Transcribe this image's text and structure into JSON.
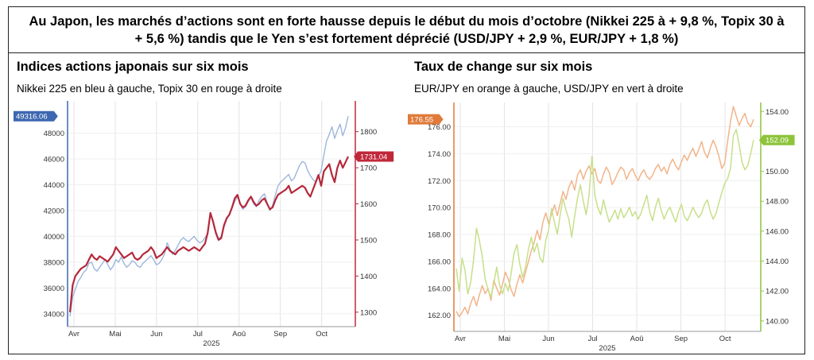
{
  "headline": "Au Japon, les marchés d’actions sont en forte hausse depuis le début du mois d’octobre (Nikkei 225 à + 9,8 %, Topix 30 à + 5,6 %) tandis que le Yen s’est fortement déprécié (USD/JPY + 2,9 %, EUR/JPY + 1,8 %)",
  "colors": {
    "nikkei": "#9db6dd",
    "topix": "#b5283b",
    "eurjpy": "#f2b48a",
    "usdjpy": "#c6e08a",
    "left_axis_l": "#3d67b0",
    "right_axis_l": "#c0283a",
    "left_axis_r": "#e07a3a",
    "right_axis_r": "#8dc43a"
  },
  "chart_data": [
    {
      "type": "line",
      "title": "Indices actions japonais sur six mois",
      "subtitle": "Nikkei 225 en bleu à gauche, Topix 30 en rouge à droite",
      "x_ticks": [
        "Avr",
        "Mai",
        "Jun",
        "Jul",
        "Aoû",
        "Sep",
        "Oct"
      ],
      "x_year": "2025",
      "y_left_ticks": [
        "34000",
        "36000",
        "38000",
        "40000",
        "42000",
        "44000",
        "46000",
        "48000"
      ],
      "y_right_ticks": [
        "1300",
        "1400",
        "1500",
        "1600",
        "1700",
        "1800"
      ],
      "ylim_left": [
        33000,
        50500
      ],
      "ylim_right": [
        1260,
        1885
      ],
      "last_left_label": "49316.06",
      "last_right_label": "1731.04",
      "series": [
        {
          "axis": "left",
          "colorKey": "nikkei",
          "values": [
            33800,
            35300,
            35900,
            36500,
            36800,
            37200,
            37400,
            37900,
            38000,
            37500,
            37300,
            37600,
            37900,
            38200,
            37800,
            37400,
            37700,
            38200,
            38000,
            38400,
            37900,
            37600,
            37800,
            38100,
            38000,
            37700,
            37600,
            37900,
            38100,
            38300,
            38500,
            38200,
            37800,
            37900,
            38200,
            38600,
            39500,
            39000,
            38600,
            38900,
            39300,
            39700,
            39900,
            39700,
            39600,
            39800,
            40000,
            39700,
            39500,
            39600,
            39900,
            40200,
            41800,
            41200,
            40400,
            39800,
            40000,
            40700,
            41300,
            41700,
            42200,
            42700,
            43100,
            42500,
            42100,
            42300,
            42700,
            43000,
            42500,
            42300,
            42800,
            43100,
            43300,
            42600,
            42000,
            42400,
            43200,
            43900,
            44200,
            44400,
            44600,
            44800,
            44300,
            44500,
            45000,
            45500,
            45800,
            45700,
            45100,
            44700,
            44400,
            44200,
            44600,
            45100,
            46300,
            47400,
            47900,
            48500,
            47600,
            48200,
            48700,
            47800,
            48400,
            49316
          ]
        },
        {
          "axis": "right",
          "colorKey": "topix",
          "values": [
            1300,
            1375,
            1400,
            1410,
            1420,
            1425,
            1430,
            1445,
            1460,
            1450,
            1445,
            1455,
            1450,
            1445,
            1440,
            1450,
            1460,
            1480,
            1470,
            1460,
            1450,
            1455,
            1460,
            1465,
            1450,
            1445,
            1450,
            1460,
            1465,
            1470,
            1480,
            1470,
            1450,
            1455,
            1460,
            1470,
            1480,
            1470,
            1465,
            1460,
            1470,
            1475,
            1480,
            1475,
            1470,
            1475,
            1480,
            1475,
            1470,
            1480,
            1490,
            1520,
            1575,
            1550,
            1520,
            1500,
            1505,
            1540,
            1560,
            1570,
            1590,
            1615,
            1625,
            1600,
            1590,
            1595,
            1610,
            1620,
            1605,
            1595,
            1600,
            1610,
            1615,
            1600,
            1585,
            1590,
            1610,
            1625,
            1630,
            1635,
            1640,
            1650,
            1630,
            1635,
            1640,
            1645,
            1650,
            1645,
            1630,
            1620,
            1640,
            1660,
            1680,
            1650,
            1690,
            1700,
            1710,
            1680,
            1660,
            1700,
            1720,
            1700,
            1715,
            1731
          ]
        }
      ]
    },
    {
      "type": "line",
      "title": "Taux de change sur six mois",
      "subtitle": "EUR/JPY en orange à gauche, USD/JPY en vert à droite",
      "x_ticks": [
        "Avr",
        "Mai",
        "Jun",
        "Jul",
        "Aoû",
        "Sep",
        "Oct"
      ],
      "x_year": "2025",
      "y_left_ticks": [
        "162.00",
        "164.00",
        "166.00",
        "168.00",
        "170.00",
        "172.00",
        "174.00",
        "176.00"
      ],
      "y_right_ticks": [
        "140.00",
        "142.00",
        "144.00",
        "146.00",
        "148.00",
        "150.00",
        "152.00",
        "154.00"
      ],
      "ylim_left": [
        160.8,
        177.8
      ],
      "ylim_right": [
        139.3,
        154.6
      ],
      "last_left_label": "176.55",
      "last_right_label": "152.09",
      "series": [
        {
          "axis": "left",
          "colorKey": "eurjpy",
          "values": [
            162.3,
            161.9,
            162.2,
            162.6,
            162.1,
            162.9,
            163.4,
            162.7,
            163.5,
            164.2,
            163.6,
            164.0,
            163.1,
            164.6,
            164.0,
            163.5,
            164.3,
            165.2,
            164.7,
            163.9,
            163.4,
            164.3,
            165.0,
            164.4,
            165.2,
            166.0,
            166.8,
            167.4,
            168.3,
            167.6,
            168.9,
            169.6,
            168.8,
            169.5,
            170.2,
            169.4,
            170.3,
            171.2,
            170.6,
            171.5,
            172.0,
            171.3,
            172.4,
            172.8,
            172.1,
            172.7,
            173.1,
            172.5,
            172.9,
            172.0,
            171.8,
            172.5,
            173.0,
            172.6,
            171.7,
            172.1,
            172.6,
            173.0,
            172.8,
            172.1,
            172.6,
            172.9,
            172.4,
            172.0,
            172.5,
            172.8,
            172.3,
            172.1,
            172.4,
            172.9,
            173.2,
            172.7,
            173.0,
            172.5,
            173.2,
            173.6,
            173.1,
            172.8,
            173.4,
            173.9,
            173.5,
            174.0,
            174.4,
            173.8,
            174.3,
            174.9,
            174.1,
            173.7,
            174.4,
            175.0,
            174.5,
            173.8,
            172.9,
            173.3,
            174.9,
            176.4,
            177.5,
            176.8,
            176.1,
            176.6,
            177.0,
            176.3,
            176.0,
            176.55
          ]
        },
        {
          "axis": "right",
          "colorKey": "usdjpy",
          "values": [
            143.5,
            142.0,
            144.2,
            143.4,
            141.8,
            142.6,
            144.1,
            146.2,
            145.4,
            144.3,
            142.8,
            142.1,
            141.6,
            142.5,
            143.6,
            142.4,
            141.8,
            142.5,
            142.0,
            143.2,
            144.5,
            145.1,
            143.8,
            142.9,
            143.6,
            144.8,
            145.6,
            144.6,
            145.2,
            144.2,
            143.9,
            145.4,
            146.1,
            147.5,
            146.6,
            145.8,
            147.1,
            148.2,
            147.4,
            146.8,
            145.6,
            147.0,
            148.2,
            149.1,
            148.0,
            147.1,
            148.4,
            151.0,
            148.4,
            147.6,
            147.1,
            148.1,
            147.3,
            146.6,
            147.0,
            147.4,
            146.8,
            147.5,
            146.9,
            147.2,
            147.6,
            147.0,
            147.3,
            146.8,
            147.2,
            147.8,
            148.4,
            147.3,
            146.7,
            147.6,
            148.2,
            147.4,
            146.8,
            147.3,
            147.6,
            147.1,
            146.6,
            147.3,
            147.8,
            147.0,
            146.7,
            147.1,
            147.6,
            147.2,
            146.9,
            147.2,
            147.8,
            148.1,
            147.3,
            146.8,
            147.2,
            147.9,
            148.6,
            149.2,
            149.5,
            150.2,
            152.4,
            152.8,
            151.8,
            150.6,
            150.1,
            150.4,
            151.2,
            152.09
          ]
        }
      ]
    }
  ]
}
